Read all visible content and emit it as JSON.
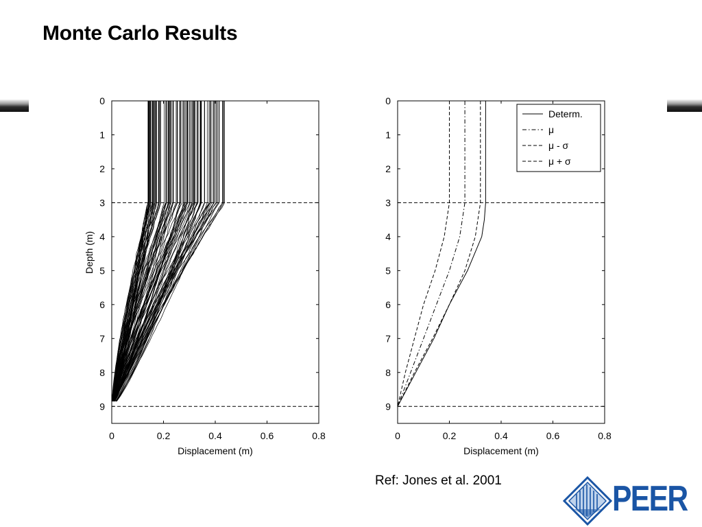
{
  "slide": {
    "title": "Monte Carlo Results",
    "reference": "Ref: Jones et al. 2001",
    "logo_text": "PEER",
    "colors": {
      "logo_blue": "#1a55a5",
      "ink": "#000000"
    }
  },
  "chart_data": [
    {
      "type": "line",
      "title": "",
      "xlabel": "Displacement (m)",
      "ylabel": "Depth (m)",
      "xlim": [
        0,
        0.8
      ],
      "ylim": [
        0,
        9.5
      ],
      "y_inverted": true,
      "xticks": [
        0,
        0.2,
        0.4,
        0.6,
        0.8
      ],
      "xtick_labels": [
        "0",
        "0.2",
        "0.4",
        "0.6",
        "0.8"
      ],
      "yticks": [
        0,
        1,
        2,
        3,
        4,
        5,
        6,
        7,
        8,
        9
      ],
      "ytick_labels": [
        "0",
        "1",
        "2",
        "3",
        "4",
        "5",
        "6",
        "7",
        "8",
        "9"
      ],
      "reference_lines": [
        3,
        9
      ],
      "grid": false,
      "legend": null,
      "monte_carlo_realizations": {
        "count": 100,
        "surface_displacement_range": [
          0.14,
          0.44
        ],
        "depth_of_curvature_start": 3,
        "base_depth": 9
      }
    },
    {
      "type": "line",
      "title": "",
      "xlabel": "Displacement (m)",
      "ylabel": "",
      "xlim": [
        0,
        0.8
      ],
      "ylim": [
        0,
        9.5
      ],
      "y_inverted": true,
      "xticks": [
        0,
        0.2,
        0.4,
        0.6,
        0.8
      ],
      "xtick_labels": [
        "0",
        "0.2",
        "0.4",
        "0.6",
        "0.8"
      ],
      "yticks": [
        0,
        1,
        2,
        3,
        4,
        5,
        6,
        7,
        8,
        9
      ],
      "ytick_labels": [
        "0",
        "1",
        "2",
        "3",
        "4",
        "5",
        "6",
        "7",
        "8",
        "9"
      ],
      "reference_lines": [
        3,
        9
      ],
      "grid": false,
      "legend": "top-right",
      "series": [
        {
          "name": "Determ.",
          "style": "solid",
          "depth": [
            0,
            3,
            3.5,
            4,
            5,
            6,
            7,
            8,
            9
          ],
          "x": [
            0.34,
            0.34,
            0.335,
            0.325,
            0.27,
            0.2,
            0.14,
            0.07,
            0
          ]
        },
        {
          "name": "μ",
          "style": "dashdot",
          "depth": [
            0,
            3,
            4,
            5,
            6,
            7,
            8,
            9
          ],
          "x": [
            0.26,
            0.26,
            0.24,
            0.2,
            0.15,
            0.1,
            0.05,
            0
          ]
        },
        {
          "name": "μ - σ",
          "style": "dashed",
          "depth": [
            0,
            3,
            4,
            5,
            6,
            7,
            8,
            9
          ],
          "x": [
            0.2,
            0.2,
            0.18,
            0.145,
            0.1,
            0.065,
            0.03,
            0
          ]
        },
        {
          "name": "μ + σ",
          "style": "dashed",
          "depth": [
            0,
            3,
            4,
            5,
            6,
            7,
            8,
            9
          ],
          "x": [
            0.32,
            0.32,
            0.3,
            0.26,
            0.2,
            0.135,
            0.065,
            0
          ]
        }
      ]
    }
  ]
}
